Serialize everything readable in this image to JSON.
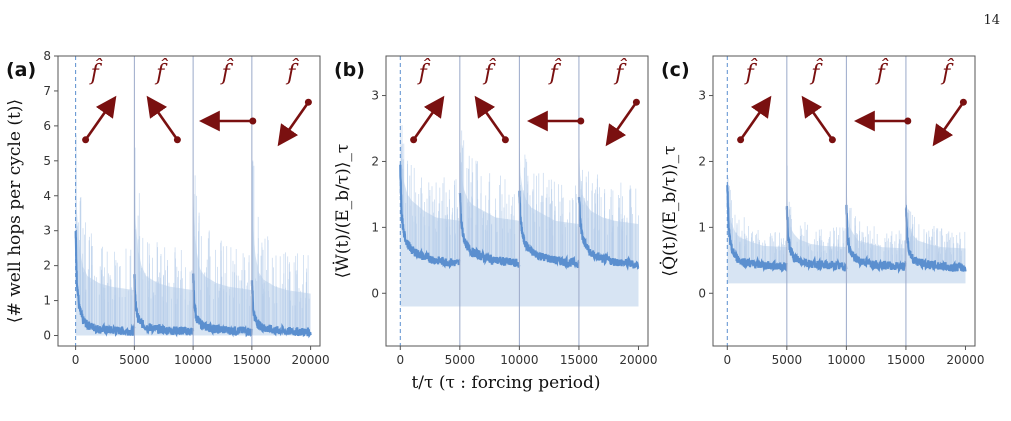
{
  "page_number": "14",
  "xlabel": "t/τ     (τ : forcing period)",
  "arrow_label": "f̂",
  "colors": {
    "band": "#b7cde9",
    "line": "#5b8fcf",
    "arrow": "#7a1010",
    "axis": "#555555",
    "divider": "#9aa9c9"
  },
  "chart_data": [
    {
      "type": "line",
      "panel_label": "(a)",
      "ylabel": "⟨# well hops per cycle (t)⟩",
      "xlim": [
        -1500,
        20800
      ],
      "ylim": [
        -0.3,
        8
      ],
      "xticks": [
        0,
        5000,
        10000,
        15000,
        20000
      ],
      "yticks": [
        0,
        1,
        2,
        3,
        4,
        5,
        6,
        7,
        8
      ],
      "cycle_starts": [
        0,
        5000,
        10000,
        15000
      ],
      "mean_segments": [
        {
          "x": [
            0,
            100,
            300,
            600,
            1000,
            2000,
            3000,
            4999
          ],
          "y": [
            3.0,
            1.6,
            0.8,
            0.45,
            0.3,
            0.18,
            0.15,
            0.12
          ]
        },
        {
          "x": [
            5000,
            5100,
            5300,
            5600,
            6000,
            7000,
            8000,
            9999
          ],
          "y": [
            1.7,
            0.9,
            0.5,
            0.35,
            0.25,
            0.18,
            0.15,
            0.12
          ]
        },
        {
          "x": [
            10000,
            10100,
            10300,
            10600,
            11000,
            12000,
            13000,
            14999
          ],
          "y": [
            1.7,
            0.9,
            0.5,
            0.35,
            0.25,
            0.18,
            0.15,
            0.12
          ]
        },
        {
          "x": [
            15000,
            15100,
            15300,
            15600,
            16000,
            17000,
            18000,
            19999
          ],
          "y": [
            1.6,
            0.8,
            0.45,
            0.3,
            0.22,
            0.15,
            0.12,
            0.1
          ]
        }
      ],
      "band_upper_segments": [
        {
          "x": [
            0,
            100,
            300,
            600,
            1000,
            2000,
            3000,
            4999
          ],
          "y": [
            5.0,
            3.6,
            2.6,
            2.0,
            1.7,
            1.5,
            1.4,
            1.3
          ]
        },
        {
          "x": [
            5000,
            5100,
            5300,
            5600,
            6000,
            7000,
            8000,
            9999
          ],
          "y": [
            4.5,
            3.3,
            2.5,
            2.0,
            1.7,
            1.5,
            1.4,
            1.3
          ]
        },
        {
          "x": [
            10000,
            10100,
            10300,
            10600,
            11000,
            12000,
            13000,
            14999
          ],
          "y": [
            4.3,
            3.2,
            2.4,
            1.9,
            1.7,
            1.5,
            1.4,
            1.3
          ]
        },
        {
          "x": [
            15000,
            15100,
            15300,
            15600,
            16000,
            17000,
            18000,
            19999
          ],
          "y": [
            4.3,
            3.1,
            2.3,
            1.8,
            1.6,
            1.4,
            1.3,
            1.2
          ]
        }
      ],
      "band_lower": 0,
      "arrow_angles_deg": [
        55,
        125,
        180,
        235
      ]
    },
    {
      "type": "line",
      "panel_label": "(b)",
      "ylabel": "⟨Ẇ(t)/(E_b/τ)⟩_τ",
      "xlim": [
        -1200,
        20800
      ],
      "ylim": [
        -0.8,
        3.6
      ],
      "xticks": [
        0,
        5000,
        10000,
        15000,
        20000
      ],
      "yticks": [
        0,
        1,
        2,
        3
      ],
      "cycle_starts": [
        0,
        5000,
        10000,
        15000
      ],
      "mean_segments": [
        {
          "x": [
            0,
            100,
            300,
            600,
            1000,
            2000,
            3000,
            4999
          ],
          "y": [
            1.9,
            1.2,
            0.9,
            0.75,
            0.65,
            0.55,
            0.5,
            0.45
          ]
        },
        {
          "x": [
            5000,
            5100,
            5300,
            5600,
            6000,
            7000,
            8000,
            9999
          ],
          "y": [
            1.5,
            1.1,
            0.85,
            0.72,
            0.63,
            0.55,
            0.5,
            0.45
          ]
        },
        {
          "x": [
            10000,
            10100,
            10300,
            10600,
            11000,
            12000,
            13000,
            14999
          ],
          "y": [
            1.5,
            1.1,
            0.85,
            0.72,
            0.63,
            0.55,
            0.5,
            0.45
          ]
        },
        {
          "x": [
            15000,
            15100,
            15300,
            15600,
            16000,
            17000,
            18000,
            19999
          ],
          "y": [
            1.5,
            1.1,
            0.85,
            0.72,
            0.6,
            0.52,
            0.48,
            0.43
          ]
        }
      ],
      "band_upper_segments": [
        {
          "x": [
            0,
            100,
            300,
            600,
            1000,
            2000,
            3000,
            4999
          ],
          "y": [
            2.8,
            2.1,
            1.7,
            1.5,
            1.4,
            1.25,
            1.15,
            1.1
          ]
        },
        {
          "x": [
            5000,
            5100,
            5300,
            5600,
            6000,
            7000,
            8000,
            9999
          ],
          "y": [
            2.4,
            1.9,
            1.6,
            1.45,
            1.35,
            1.25,
            1.15,
            1.1
          ]
        },
        {
          "x": [
            10000,
            10100,
            10300,
            10600,
            11000,
            12000,
            13000,
            14999
          ],
          "y": [
            2.3,
            1.8,
            1.55,
            1.4,
            1.3,
            1.2,
            1.1,
            1.05
          ]
        },
        {
          "x": [
            15000,
            15100,
            15300,
            15600,
            16000,
            17000,
            18000,
            19999
          ],
          "y": [
            2.3,
            1.8,
            1.5,
            1.35,
            1.25,
            1.15,
            1.1,
            1.05
          ]
        }
      ],
      "band_lower": -0.2,
      "arrow_angles_deg": [
        55,
        125,
        180,
        235
      ]
    },
    {
      "type": "line",
      "panel_label": "(c)",
      "ylabel": "⟨Q̇(t)/(E_b/τ)⟩_τ",
      "xlim": [
        -1200,
        20800
      ],
      "ylim": [
        -0.8,
        3.6
      ],
      "xticks": [
        0,
        5000,
        10000,
        15000,
        20000
      ],
      "yticks": [
        0,
        1,
        2,
        3
      ],
      "cycle_starts": [
        0,
        5000,
        10000,
        15000
      ],
      "mean_segments": [
        {
          "x": [
            0,
            100,
            300,
            600,
            1000,
            2000,
            3000,
            4999
          ],
          "y": [
            1.7,
            1.0,
            0.7,
            0.58,
            0.5,
            0.45,
            0.43,
            0.4
          ]
        },
        {
          "x": [
            5000,
            5100,
            5300,
            5600,
            6000,
            7000,
            8000,
            9999
          ],
          "y": [
            1.3,
            0.85,
            0.65,
            0.55,
            0.5,
            0.45,
            0.43,
            0.4
          ]
        },
        {
          "x": [
            10000,
            10100,
            10300,
            10600,
            11000,
            12000,
            13000,
            14999
          ],
          "y": [
            1.3,
            0.85,
            0.65,
            0.55,
            0.5,
            0.45,
            0.43,
            0.4
          ]
        },
        {
          "x": [
            15000,
            15100,
            15300,
            15600,
            16000,
            17000,
            18000,
            19999
          ],
          "y": [
            1.3,
            0.85,
            0.63,
            0.52,
            0.47,
            0.43,
            0.41,
            0.38
          ]
        }
      ],
      "band_upper_segments": [
        {
          "x": [
            0,
            100,
            300,
            600,
            1000,
            2000,
            3000,
            4999
          ],
          "y": [
            2.1,
            1.4,
            1.1,
            0.95,
            0.85,
            0.78,
            0.72,
            0.7
          ]
        },
        {
          "x": [
            5000,
            5100,
            5300,
            5600,
            6000,
            7000,
            8000,
            9999
          ],
          "y": [
            1.8,
            1.2,
            1.0,
            0.9,
            0.82,
            0.75,
            0.72,
            0.7
          ]
        },
        {
          "x": [
            10000,
            10100,
            10300,
            10600,
            11000,
            12000,
            13000,
            14999
          ],
          "y": [
            1.8,
            1.2,
            1.0,
            0.9,
            0.8,
            0.75,
            0.7,
            0.68
          ]
        },
        {
          "x": [
            15000,
            15100,
            15300,
            15600,
            16000,
            17000,
            18000,
            19999
          ],
          "y": [
            1.8,
            1.2,
            1.0,
            0.88,
            0.8,
            0.74,
            0.7,
            0.68
          ]
        }
      ],
      "band_lower": 0.15,
      "arrow_angles_deg": [
        55,
        125,
        180,
        235
      ]
    }
  ]
}
